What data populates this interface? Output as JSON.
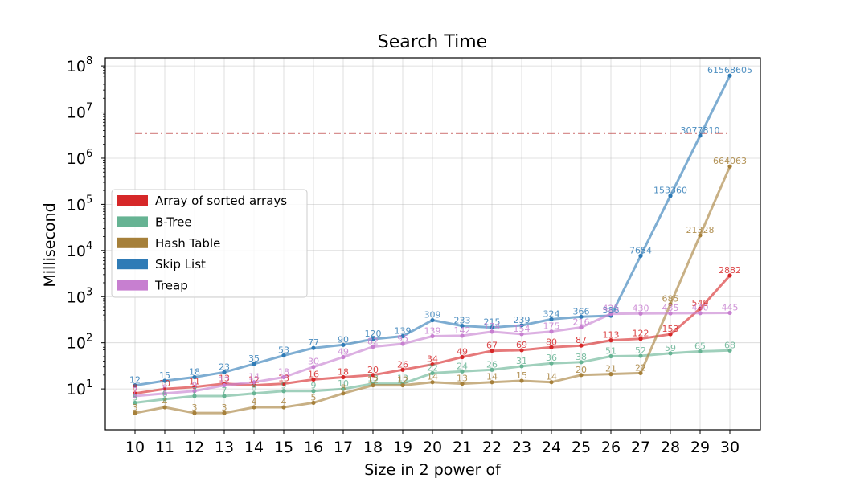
{
  "chart_data": {
    "type": "line",
    "title": "Search Time",
    "xlabel": "Size in 2 power of",
    "ylabel": "Millisecond",
    "yscale": "log",
    "ylim": [
      1.3,
      150000000
    ],
    "grid": true,
    "legend_position": "center-left",
    "x": [
      10,
      11,
      12,
      13,
      14,
      15,
      16,
      17,
      18,
      19,
      20,
      21,
      22,
      23,
      24,
      25,
      26,
      27,
      28,
      29,
      30
    ],
    "y_ticks": [
      "10",
      "10",
      "10",
      "10",
      "10",
      "10",
      "10",
      "10"
    ],
    "y_tick_exponents": [
      "1",
      "2",
      "3",
      "4",
      "5",
      "6",
      "7",
      "8"
    ],
    "reference_line": {
      "value": 3500000,
      "color": "#b22222"
    },
    "series": [
      {
        "name": "Array of sorted arrays",
        "color": "#d62728",
        "values": [
          8,
          10,
          11,
          13,
          12,
          13,
          16,
          18,
          20,
          26,
          34,
          49,
          67,
          69,
          80,
          87,
          113,
          122,
          153,
          549,
          2882
        ],
        "labels": [
          "8",
          "10",
          "11",
          "13",
          "12",
          "13",
          "16",
          "18",
          "20",
          "26",
          "34",
          "49",
          "67",
          "69",
          "80",
          "87",
          "113",
          "122",
          "153",
          "549",
          "2882"
        ]
      },
      {
        "name": "B-Tree",
        "color": "#66b393",
        "values": [
          5,
          6,
          7,
          7,
          8,
          9,
          9,
          10,
          13,
          13,
          22,
          24,
          26,
          31,
          36,
          38,
          51,
          52,
          59,
          65,
          68
        ],
        "labels": [
          "5",
          "6",
          "7",
          "7",
          "8",
          "9",
          "9",
          "10",
          "13",
          "13",
          "22",
          "24",
          "26",
          "31",
          "36",
          "38",
          "51",
          "52",
          "59",
          "65",
          "68"
        ]
      },
      {
        "name": "Hash Table",
        "color": "#a6803a",
        "values": [
          3,
          4,
          3,
          3,
          4,
          4,
          5,
          8,
          12,
          12,
          14,
          13,
          14,
          15,
          14,
          20,
          21,
          22,
          685,
          21328,
          664063
        ],
        "labels": [
          "3",
          "4",
          "3",
          "3",
          "4",
          "4",
          "5",
          "8",
          "12",
          "12",
          "14",
          "13",
          "14",
          "15",
          "14",
          "20",
          "21",
          "22",
          "685",
          "21328",
          "664063"
        ]
      },
      {
        "name": "Skip List",
        "color": "#2f7bb6",
        "values": [
          12,
          15,
          18,
          23,
          35,
          53,
          77,
          90,
          120,
          139,
          309,
          233,
          215,
          239,
          324,
          366,
          386,
          7654,
          153360,
          3077810,
          61568605
        ],
        "labels": [
          "12",
          "15",
          "18",
          "23",
          "35",
          "53",
          "77",
          "90",
          "120",
          "139",
          "309",
          "233",
          "215",
          "239",
          "324",
          "366",
          "386",
          "7654",
          "153360",
          "3077810",
          "61568605"
        ]
      },
      {
        "name": "Treap",
        "color": "#c77fd0",
        "values": [
          7,
          8,
          9,
          12,
          14,
          18,
          30,
          49,
          82,
          95,
          139,
          142,
          174,
          154,
          175,
          216,
          425,
          430,
          435,
          440,
          445
        ],
        "labels": [
          "7",
          "8",
          "9",
          "12",
          "14",
          "18",
          "30",
          "49",
          "82",
          "95",
          "139",
          "142",
          "174",
          "154",
          "175",
          "216",
          "425",
          "430",
          "435",
          "440",
          "445"
        ]
      }
    ]
  }
}
